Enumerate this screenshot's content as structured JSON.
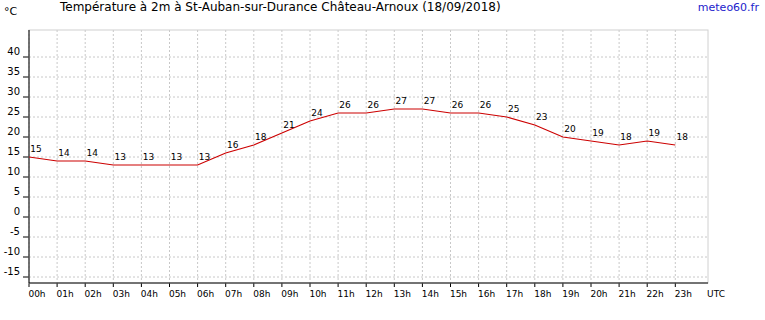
{
  "chart_data": {
    "type": "line",
    "title": "Température à 2m à St-Auban-sur-Durance Château-Arnoux (18/09/2018)",
    "y_label": "°C",
    "x_label": "UTC",
    "annotations": [
      "meteo60.fr"
    ],
    "categories": [
      "00h",
      "01h",
      "02h",
      "03h",
      "04h",
      "05h",
      "06h",
      "07h",
      "08h",
      "09h",
      "10h",
      "11h",
      "12h",
      "13h",
      "14h",
      "15h",
      "16h",
      "17h",
      "18h",
      "19h",
      "20h",
      "21h",
      "22h",
      "23h"
    ],
    "values": [
      15,
      14,
      14,
      13,
      13,
      13,
      13,
      16,
      18,
      21,
      24,
      26,
      26,
      27,
      27,
      26,
      26,
      25,
      23,
      20,
      19,
      18,
      19,
      18
    ],
    "color": "#cc0000",
    "ylim": [
      -16.5,
      46.75
    ],
    "yticks": [
      -15,
      -10,
      -5,
      0,
      5,
      10,
      15,
      20,
      25,
      30,
      35,
      40
    ],
    "grid": true,
    "data_labels": true
  }
}
